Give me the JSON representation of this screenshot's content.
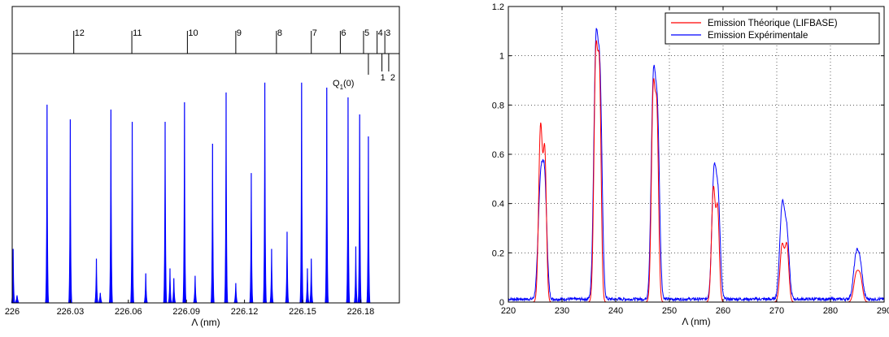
{
  "chart_data": [
    {
      "type": "area",
      "xlabel": "Λ (nm)",
      "ylabel": "",
      "xlim": [
        226.0,
        226.2
      ],
      "ylim": [
        0,
        1
      ],
      "xticks": [
        "226",
        "226.03",
        "226.06",
        "226.09",
        "226.12",
        "226.15",
        "226.18"
      ],
      "xtick_values": [
        226.0,
        226.03,
        226.06,
        226.09,
        226.12,
        226.15,
        226.18
      ],
      "grid": false,
      "series_color": "#0000ff",
      "peaks": [
        {
          "x": 226.0005,
          "y": 0.22
        },
        {
          "x": 226.0025,
          "y": 0.03
        },
        {
          "x": 226.018,
          "y": 0.81
        },
        {
          "x": 226.03,
          "y": 0.75
        },
        {
          "x": 226.0435,
          "y": 0.18
        },
        {
          "x": 226.0455,
          "y": 0.04
        },
        {
          "x": 226.051,
          "y": 0.79
        },
        {
          "x": 226.062,
          "y": 0.74
        },
        {
          "x": 226.069,
          "y": 0.12
        },
        {
          "x": 226.079,
          "y": 0.74
        },
        {
          "x": 226.0815,
          "y": 0.14
        },
        {
          "x": 226.0835,
          "y": 0.1
        },
        {
          "x": 226.089,
          "y": 0.82
        },
        {
          "x": 226.0945,
          "y": 0.11
        },
        {
          "x": 226.1035,
          "y": 0.65
        },
        {
          "x": 226.1105,
          "y": 0.86
        },
        {
          "x": 226.1155,
          "y": 0.08
        },
        {
          "x": 226.1235,
          "y": 0.53
        },
        {
          "x": 226.1305,
          "y": 0.9
        },
        {
          "x": 226.134,
          "y": 0.22
        },
        {
          "x": 226.142,
          "y": 0.29
        },
        {
          "x": 226.1495,
          "y": 0.9
        },
        {
          "x": 226.1525,
          "y": 0.14
        },
        {
          "x": 226.1545,
          "y": 0.18
        },
        {
          "x": 226.1625,
          "y": 0.88
        },
        {
          "x": 226.1735,
          "y": 0.84
        },
        {
          "x": 226.1775,
          "y": 0.23
        },
        {
          "x": 226.1795,
          "y": 0.77
        },
        {
          "x": 226.184,
          "y": 0.68
        }
      ],
      "branch_lines": [
        {
          "label": "12",
          "x": 226.0318
        },
        {
          "label": "11",
          "x": 226.0618
        },
        {
          "label": "10",
          "x": 226.0905
        },
        {
          "label": "9",
          "x": 226.1155
        },
        {
          "label": "8",
          "x": 226.1365
        },
        {
          "label": "7",
          "x": 226.1545
        },
        {
          "label": "6",
          "x": 226.1695
        },
        {
          "label": "5",
          "x": 226.1815
        },
        {
          "label": "4",
          "x": 226.1885
        },
        {
          "label": "3",
          "x": 226.1925
        }
      ],
      "lower_lines": [
        {
          "label": "1",
          "x": 226.191
        },
        {
          "label": "2",
          "x": 226.1945
        }
      ],
      "annotation": {
        "label": "Q",
        "sub": "1",
        "suffix": "(0)"
      },
      "q_line_x": 226.184
    },
    {
      "type": "line",
      "xlabel": "Λ (nm)",
      "ylabel": "",
      "xlim": [
        220,
        290
      ],
      "ylim": [
        0,
        1.2
      ],
      "xticks": [
        "220",
        "230",
        "240",
        "250",
        "260",
        "270",
        "280",
        "290"
      ],
      "xtick_values": [
        220,
        230,
        240,
        250,
        260,
        270,
        280,
        290
      ],
      "yticks": [
        "0",
        "0.2",
        "0.4",
        "0.6",
        "0.8",
        "1",
        "1.2"
      ],
      "ytick_values": [
        0,
        0.2,
        0.4,
        0.6,
        0.8,
        1.0,
        1.2
      ],
      "grid": true,
      "legend_position": "top-right",
      "series": [
        {
          "name": "Emission Théorique (LIFBASE)",
          "color": "#ff0000",
          "peaks": [
            {
              "x": 226.0,
              "y": 0.71,
              "w": 0.35
            },
            {
              "x": 226.8,
              "y": 0.58,
              "w": 0.3
            },
            {
              "x": 236.3,
              "y": 0.99,
              "w": 0.35
            },
            {
              "x": 237.0,
              "y": 0.83,
              "w": 0.3
            },
            {
              "x": 247.0,
              "y": 0.85,
              "w": 0.35
            },
            {
              "x": 247.7,
              "y": 0.68,
              "w": 0.3
            },
            {
              "x": 258.2,
              "y": 0.46,
              "w": 0.35
            },
            {
              "x": 259.0,
              "y": 0.36,
              "w": 0.3
            },
            {
              "x": 271.0,
              "y": 0.23,
              "w": 0.4
            },
            {
              "x": 271.9,
              "y": 0.22,
              "w": 0.35
            },
            {
              "x": 284.8,
              "y": 0.11,
              "w": 0.45
            },
            {
              "x": 285.6,
              "y": 0.09,
              "w": 0.4
            }
          ]
        },
        {
          "name": "Emission Expérimentale",
          "color": "#0000ff",
          "peaks": [
            {
              "x": 226.0,
              "y": 0.46,
              "w": 0.45
            },
            {
              "x": 226.8,
              "y": 0.42,
              "w": 0.4
            },
            {
              "x": 236.3,
              "y": 0.98,
              "w": 0.4
            },
            {
              "x": 237.1,
              "y": 0.81,
              "w": 0.38
            },
            {
              "x": 247.0,
              "y": 0.85,
              "w": 0.4
            },
            {
              "x": 247.8,
              "y": 0.68,
              "w": 0.38
            },
            {
              "x": 258.3,
              "y": 0.5,
              "w": 0.4
            },
            {
              "x": 259.1,
              "y": 0.38,
              "w": 0.38
            },
            {
              "x": 271.0,
              "y": 0.37,
              "w": 0.45
            },
            {
              "x": 271.9,
              "y": 0.25,
              "w": 0.42
            },
            {
              "x": 284.8,
              "y": 0.17,
              "w": 0.5
            },
            {
              "x": 285.6,
              "y": 0.11,
              "w": 0.45
            }
          ],
          "baseline": 0.012
        }
      ]
    }
  ]
}
